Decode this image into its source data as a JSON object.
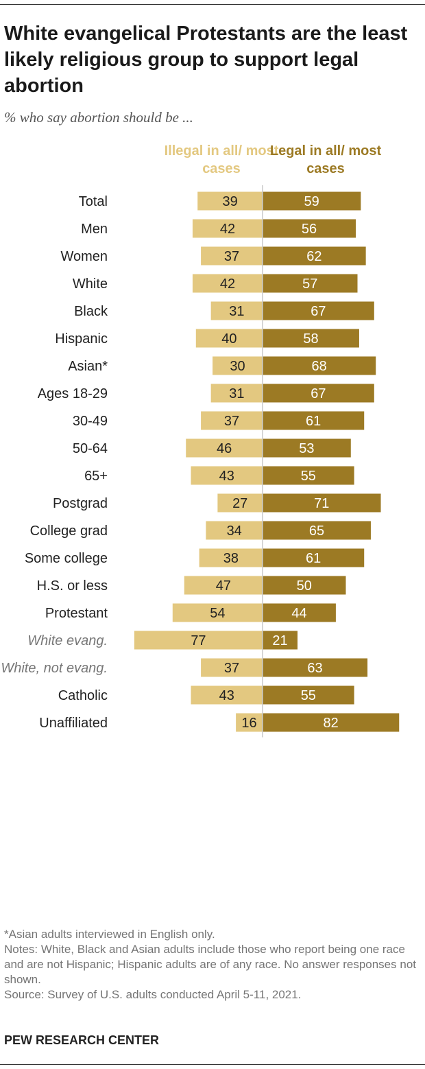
{
  "title": "White evangelical Protestants are the least likely religious group to support legal abortion",
  "subtitle": "% who say abortion should be ...",
  "colors": {
    "illegal": "#e3c880",
    "legal": "#9c7a24",
    "divider": "#c8c8c8"
  },
  "chart_data": {
    "type": "bar",
    "orientation": "horizontal-diverging",
    "series": [
      {
        "name": "Illegal in all/ most cases",
        "values": [
          39,
          42,
          37,
          42,
          31,
          40,
          30,
          31,
          37,
          46,
          43,
          27,
          34,
          38,
          47,
          54,
          77,
          37,
          43,
          16
        ]
      },
      {
        "name": "Legal in all/ most cases",
        "values": [
          59,
          56,
          62,
          57,
          67,
          58,
          68,
          67,
          61,
          53,
          55,
          71,
          65,
          61,
          50,
          44,
          21,
          63,
          55,
          82
        ]
      }
    ],
    "categories": [
      "Total",
      "Men",
      "Women",
      "White",
      "Black",
      "Hispanic",
      "Asian*",
      "Ages 18-29",
      "30-49",
      "50-64",
      "65+",
      "Postgrad",
      "College grad",
      "Some college",
      "H.S. or less",
      "Protestant",
      "White evang.",
      "White, not evang.",
      "Catholic",
      "Unaffiliated"
    ],
    "italic_categories": [
      "White evang.",
      "White, not evang."
    ],
    "groups": [
      [
        0
      ],
      [
        1,
        2
      ],
      [
        3,
        4,
        5,
        6
      ],
      [
        7,
        8,
        9,
        10
      ],
      [
        11,
        12,
        13,
        14
      ],
      [
        15,
        16,
        17
      ],
      [
        18,
        19
      ]
    ],
    "xlim": [
      0,
      100
    ]
  },
  "footnotes": {
    "asterisk": "*Asian adults interviewed in English only.",
    "notes": "Notes: White, Black and Asian adults include those who report being one race and are not Hispanic; Hispanic adults are of any race. No answer responses not shown.",
    "source": "Source: Survey of U.S. adults conducted April 5-11, 2021."
  },
  "brand": "PEW RESEARCH CENTER"
}
